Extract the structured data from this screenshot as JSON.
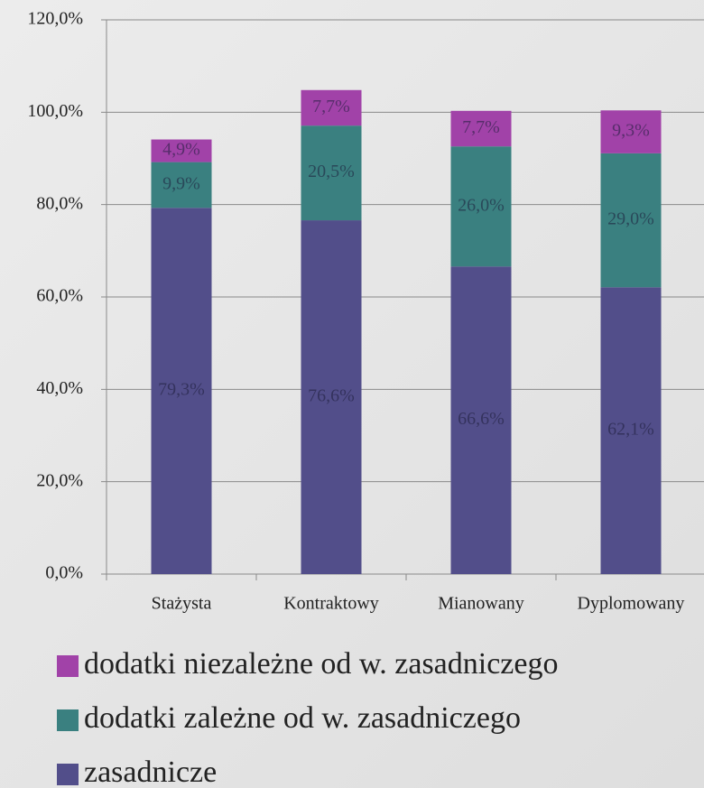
{
  "chart_data": {
    "type": "stacked_bar",
    "categories": [
      "Stażysta",
      "Kontraktowy",
      "Mianowany",
      "Dyplomowany"
    ],
    "series": [
      {
        "name": "zasadnicze",
        "color": "#524e8a",
        "values": [
          79.3,
          76.6,
          66.6,
          62.1
        ],
        "value_labels": [
          "79,3%",
          "76,6%",
          "66,6%",
          "62,1%"
        ]
      },
      {
        "name": "dodatki zależne od w. zasadniczego",
        "color": "#3a8080",
        "values": [
          9.9,
          20.5,
          26.0,
          29.0
        ],
        "value_labels": [
          "9,9%",
          "20,5%",
          "26,0%",
          "29,0%"
        ]
      },
      {
        "name": "dodatki niezależne od w. zasadniczego",
        "color": "#a142a8",
        "values": [
          4.9,
          7.7,
          7.7,
          9.3
        ],
        "value_labels": [
          "4,9%",
          "7,7%",
          "7,7%",
          "9,3%"
        ]
      }
    ],
    "ylim": [
      0,
      120
    ],
    "yticks": [
      {
        "value": 0,
        "label": "0,0%"
      },
      {
        "value": 20,
        "label": "20,0%"
      },
      {
        "value": 40,
        "label": "40,0%"
      },
      {
        "value": 60,
        "label": "60,0%"
      },
      {
        "value": 80,
        "label": "80,0%"
      },
      {
        "value": 100,
        "label": "100,0%"
      },
      {
        "value": 120,
        "label": "120,0%"
      }
    ],
    "grid": true,
    "legend": "bottom"
  }
}
